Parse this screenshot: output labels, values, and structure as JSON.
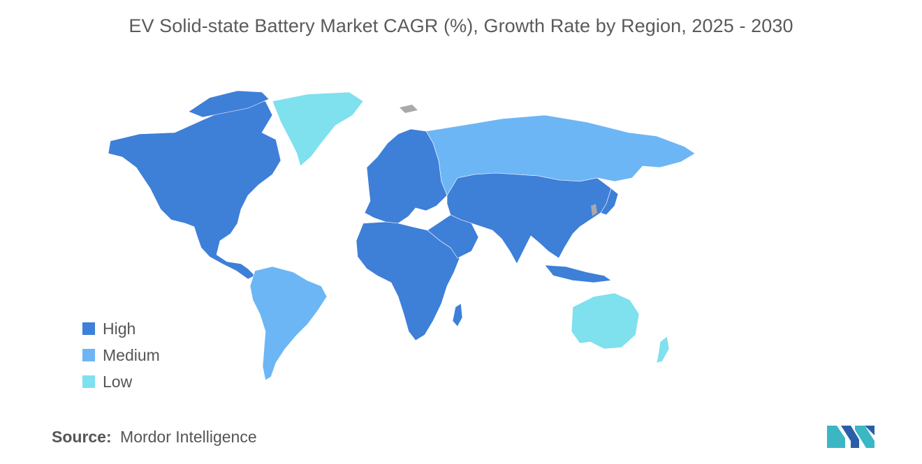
{
  "title": "EV Solid-state Battery Market CAGR (%), Growth Rate by Region, 2025 - 2030",
  "legend": [
    {
      "label": "High",
      "color": "#3e7fd8"
    },
    {
      "label": "Medium",
      "color": "#6db6f5"
    },
    {
      "label": "Low",
      "color": "#7fe0ee"
    }
  ],
  "no_data_color": "#a9a9a9",
  "regions": {
    "north_america": "High",
    "greenland": "Low",
    "south_america": "Medium",
    "europe": "High",
    "russia": "Medium",
    "africa": "High",
    "middle_east": "High",
    "asia": "High",
    "australia_new_zealand": "Low"
  },
  "source": {
    "label": "Source:",
    "value": "Mordor Intelligence"
  },
  "logo_icon": "mordor-intelligence-logo-icon"
}
